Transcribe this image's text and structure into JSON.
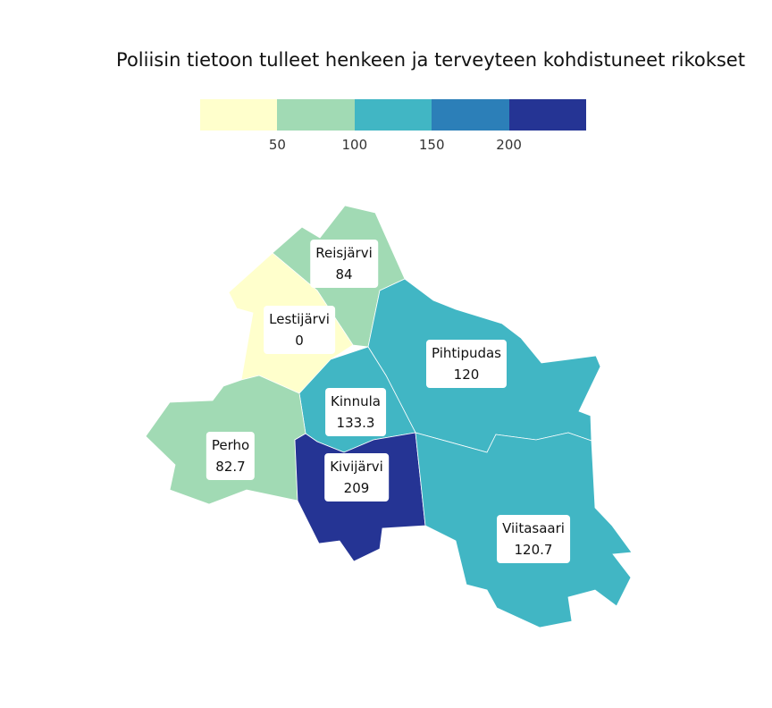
{
  "title": "Poliisin tietoon tulleet henkeen ja terveyteen kohdistuneet rikokset",
  "legend": {
    "bins": [
      {
        "color": "#ffffcc"
      },
      {
        "color": "#a1dab4"
      },
      {
        "color": "#41b6c4"
      },
      {
        "color": "#2c7fb8"
      },
      {
        "color": "#253494"
      }
    ],
    "ticks": [
      "50",
      "100",
      "150",
      "200"
    ]
  },
  "regions": [
    {
      "key": "reisjarvi",
      "name": "Reisjärvi",
      "value": "84",
      "color": "#a1dab4"
    },
    {
      "key": "lestijarvi",
      "name": "Lestijärvi",
      "value": "0",
      "color": "#ffffcc"
    },
    {
      "key": "pihtipudas",
      "name": "Pihtipudas",
      "value": "120",
      "color": "#41b6c4"
    },
    {
      "key": "kinnula",
      "name": "Kinnula",
      "value": "133.3",
      "color": "#41b6c4"
    },
    {
      "key": "perho",
      "name": "Perho",
      "value": "82.7",
      "color": "#a1dab4"
    },
    {
      "key": "kivijarvi",
      "name": "Kivijärvi",
      "value": "209",
      "color": "#253494"
    },
    {
      "key": "viitasaari",
      "name": "Viitasaari",
      "value": "120.7",
      "color": "#41b6c4"
    }
  ]
}
